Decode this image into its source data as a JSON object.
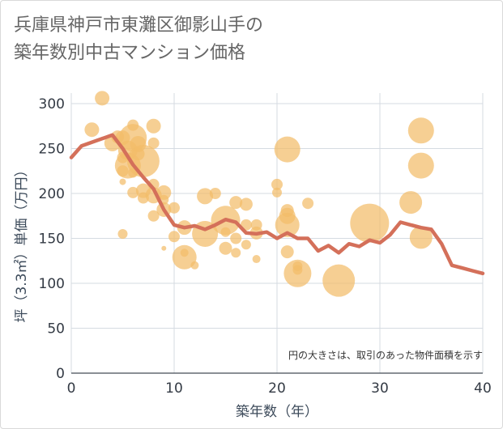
{
  "chart_data": {
    "type": "scatter",
    "title": "兵庫県神戸市東灘区御影山手の\n築年数別中古マンション価格",
    "xlabel": "築年数（年）",
    "ylabel": "坪（3.3㎡）単価（万円）",
    "note": "円の大きさは、取引のあった物件面積を示す",
    "xlim": [
      0,
      40
    ],
    "ylim": [
      0,
      320
    ],
    "xticks": [
      0,
      10,
      20,
      30,
      40
    ],
    "yticks": [
      0,
      50,
      100,
      150,
      200,
      250,
      300
    ],
    "grid": true,
    "colors": {
      "bubble": "#f3bd6a",
      "line": "#d4705a",
      "grid": "#d5dbe2"
    },
    "bubbles": [
      {
        "x": 3,
        "y": 306,
        "r": 9
      },
      {
        "x": 2,
        "y": 271,
        "r": 9
      },
      {
        "x": 4,
        "y": 256,
        "r": 10
      },
      {
        "x": 4.5,
        "y": 263,
        "r": 8
      },
      {
        "x": 5,
        "y": 262,
        "r": 9
      },
      {
        "x": 5.5,
        "y": 248,
        "r": 12
      },
      {
        "x": 6,
        "y": 262,
        "r": 17
      },
      {
        "x": 6,
        "y": 276,
        "r": 7
      },
      {
        "x": 6.5,
        "y": 255,
        "r": 10
      },
      {
        "x": 6.5,
        "y": 244,
        "r": 8
      },
      {
        "x": 5,
        "y": 240,
        "r": 7
      },
      {
        "x": 5.5,
        "y": 231,
        "r": 16
      },
      {
        "x": 7,
        "y": 236,
        "r": 20
      },
      {
        "x": 5,
        "y": 225,
        "r": 7
      },
      {
        "x": 6,
        "y": 223,
        "r": 6
      },
      {
        "x": 5,
        "y": 213,
        "r": 4
      },
      {
        "x": 8,
        "y": 275,
        "r": 9
      },
      {
        "x": 8,
        "y": 256,
        "r": 7
      },
      {
        "x": 8,
        "y": 210,
        "r": 7
      },
      {
        "x": 6,
        "y": 201,
        "r": 7
      },
      {
        "x": 7,
        "y": 203,
        "r": 9
      },
      {
        "x": 7,
        "y": 195,
        "r": 7
      },
      {
        "x": 8,
        "y": 198,
        "r": 10
      },
      {
        "x": 9,
        "y": 201,
        "r": 9
      },
      {
        "x": 9,
        "y": 193,
        "r": 6
      },
      {
        "x": 8,
        "y": 175,
        "r": 7
      },
      {
        "x": 9,
        "y": 182,
        "r": 9
      },
      {
        "x": 10,
        "y": 184,
        "r": 7
      },
      {
        "x": 10,
        "y": 152,
        "r": 7
      },
      {
        "x": 9,
        "y": 139,
        "r": 3
      },
      {
        "x": 5,
        "y": 155,
        "r": 6
      },
      {
        "x": 11,
        "y": 162,
        "r": 9
      },
      {
        "x": 11,
        "y": 134,
        "r": 5
      },
      {
        "x": 11,
        "y": 129,
        "r": 15
      },
      {
        "x": 12,
        "y": 120,
        "r": 5
      },
      {
        "x": 13,
        "y": 197,
        "r": 10
      },
      {
        "x": 14,
        "y": 200,
        "r": 7
      },
      {
        "x": 13,
        "y": 155,
        "r": 16
      },
      {
        "x": 15,
        "y": 170,
        "r": 18
      },
      {
        "x": 15,
        "y": 157,
        "r": 6
      },
      {
        "x": 15,
        "y": 139,
        "r": 8
      },
      {
        "x": 16,
        "y": 190,
        "r": 8
      },
      {
        "x": 16,
        "y": 150,
        "r": 7
      },
      {
        "x": 16,
        "y": 134,
        "r": 6
      },
      {
        "x": 17,
        "y": 188,
        "r": 8
      },
      {
        "x": 17,
        "y": 165,
        "r": 7
      },
      {
        "x": 17,
        "y": 143,
        "r": 6
      },
      {
        "x": 18,
        "y": 165,
        "r": 7
      },
      {
        "x": 18,
        "y": 156,
        "r": 8
      },
      {
        "x": 18,
        "y": 127,
        "r": 5
      },
      {
        "x": 20,
        "y": 210,
        "r": 7
      },
      {
        "x": 20,
        "y": 201,
        "r": 6
      },
      {
        "x": 21,
        "y": 249,
        "r": 16
      },
      {
        "x": 21,
        "y": 181,
        "r": 8
      },
      {
        "x": 21,
        "y": 175,
        "r": 10
      },
      {
        "x": 21,
        "y": 165,
        "r": 15
      },
      {
        "x": 21,
        "y": 135,
        "r": 8
      },
      {
        "x": 22,
        "y": 119,
        "r": 6
      },
      {
        "x": 22,
        "y": 115,
        "r": 6
      },
      {
        "x": 22,
        "y": 111,
        "r": 17
      },
      {
        "x": 23,
        "y": 189,
        "r": 7
      },
      {
        "x": 26,
        "y": 103,
        "r": 20
      },
      {
        "x": 29,
        "y": 167,
        "r": 24
      },
      {
        "x": 33,
        "y": 190,
        "r": 14
      },
      {
        "x": 34,
        "y": 270,
        "r": 16
      },
      {
        "x": 34,
        "y": 231,
        "r": 16
      },
      {
        "x": 34,
        "y": 151,
        "r": 14
      }
    ],
    "trend": {
      "x": [
        0,
        1,
        2,
        3,
        4,
        5,
        6,
        7,
        8,
        9,
        10,
        11,
        12,
        13,
        14,
        15,
        16,
        17,
        18,
        19,
        20,
        21,
        22,
        23,
        24,
        25,
        26,
        27,
        28,
        29,
        30,
        31,
        32,
        33,
        34,
        35,
        36,
        37,
        38,
        39,
        40
      ],
      "y": [
        240,
        253,
        257,
        261,
        265,
        250,
        232,
        218,
        205,
        182,
        165,
        162,
        164,
        160,
        165,
        171,
        168,
        156,
        155,
        157,
        150,
        156,
        150,
        150,
        136,
        142,
        134,
        144,
        141,
        148,
        145,
        154,
        168,
        165,
        162,
        160,
        144,
        120,
        117,
        114,
        111
      ]
    }
  }
}
